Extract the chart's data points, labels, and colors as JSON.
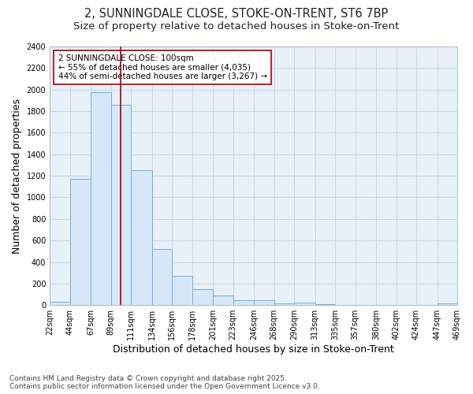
{
  "title_line1": "2, SUNNINGDALE CLOSE, STOKE-ON-TRENT, ST6 7BP",
  "title_line2": "Size of property relative to detached houses in Stoke-on-Trent",
  "xlabel": "Distribution of detached houses by size in Stoke-on-Trent",
  "ylabel": "Number of detached properties",
  "bar_left_edges": [
    22,
    44,
    67,
    89,
    111,
    134,
    156,
    178,
    201,
    223,
    246,
    268,
    290,
    313,
    335,
    357,
    380,
    402,
    424,
    447
  ],
  "bar_widths": [
    22,
    23,
    22,
    22,
    23,
    22,
    22,
    23,
    22,
    23,
    22,
    22,
    23,
    22,
    22,
    23,
    22,
    22,
    23,
    22
  ],
  "bar_heights": [
    28,
    1170,
    1975,
    1860,
    1250,
    520,
    275,
    150,
    90,
    42,
    45,
    18,
    25,
    8,
    4,
    3,
    2,
    5,
    2,
    18
  ],
  "bar_color": "#d6e8f7",
  "bar_edgecolor": "#7aadda",
  "bar_linewidth": 0.7,
  "vline_x": 100,
  "vline_color": "#aa0000",
  "vline_linewidth": 1.2,
  "ylim": [
    0,
    2400
  ],
  "xlim": [
    22,
    469
  ],
  "yticks": [
    0,
    200,
    400,
    600,
    800,
    1000,
    1200,
    1400,
    1600,
    1800,
    2000,
    2200,
    2400
  ],
  "xtick_labels": [
    "22sqm",
    "44sqm",
    "67sqm",
    "89sqm",
    "111sqm",
    "134sqm",
    "156sqm",
    "178sqm",
    "201sqm",
    "223sqm",
    "246sqm",
    "268sqm",
    "290sqm",
    "313sqm",
    "335sqm",
    "357sqm",
    "380sqm",
    "402sqm",
    "424sqm",
    "447sqm",
    "469sqm"
  ],
  "xtick_positions": [
    22,
    44,
    67,
    89,
    111,
    134,
    156,
    178,
    201,
    223,
    246,
    268,
    290,
    313,
    335,
    357,
    380,
    402,
    424,
    447,
    469
  ],
  "annotation_text": "2 SUNNINGDALE CLOSE: 100sqm\n← 55% of detached houses are smaller (4,035)\n44% of semi-detached houses are larger (3,267) →",
  "annotation_box_color": "#ffffff",
  "annotation_box_edgecolor": "#aa0000",
  "grid_color": "#c8d8e8",
  "axes_background": "#e8f0f8",
  "fig_background": "#ffffff",
  "footer_text": "Contains HM Land Registry data © Crown copyright and database right 2025.\nContains public sector information licensed under the Open Government Licence v3.0.",
  "title_fontsize": 10.5,
  "subtitle_fontsize": 9.5,
  "axis_label_fontsize": 9,
  "tick_fontsize": 7,
  "annotation_fontsize": 7.5,
  "footer_fontsize": 6.5
}
